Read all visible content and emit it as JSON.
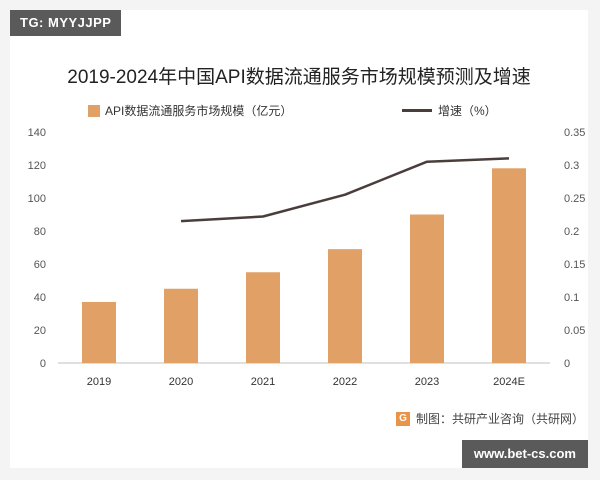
{
  "header": {
    "tag": "TG: MYYJJPP"
  },
  "footer": {
    "site": "www.bet-cs.com",
    "source": "制图：共研产业咨询（共研网）",
    "source_logo": "G"
  },
  "colors": {
    "bar": "#e0a066",
    "line": "#4a3e3d",
    "axis": "#bfbfbf",
    "text": "#555555"
  },
  "chart_data": {
    "type": "bar",
    "title": "2019-2024年中国API数据流通服务市场规模预测及增速",
    "categories": [
      "2019",
      "2020",
      "2021",
      "2022",
      "2023",
      "2024E"
    ],
    "legend_position": "top",
    "grid": false,
    "series": [
      {
        "name": "API数据流通服务市场规模（亿元）",
        "type": "bar",
        "axis": "left",
        "values": [
          37,
          45,
          55,
          69,
          90,
          118
        ]
      },
      {
        "name": "增速（%）",
        "type": "line",
        "axis": "right",
        "values": [
          null,
          0.215,
          0.222,
          0.255,
          0.305,
          0.31
        ]
      }
    ],
    "y_left": {
      "min": 0,
      "max": 140,
      "ticks": [
        0,
        20,
        40,
        60,
        80,
        100,
        120,
        140
      ]
    },
    "y_right": {
      "min": 0,
      "max": 0.35,
      "ticks": [
        "0",
        "0.05",
        "0.1",
        "0.15",
        "0.2",
        "0.25",
        "0.3",
        "0.35"
      ]
    }
  }
}
